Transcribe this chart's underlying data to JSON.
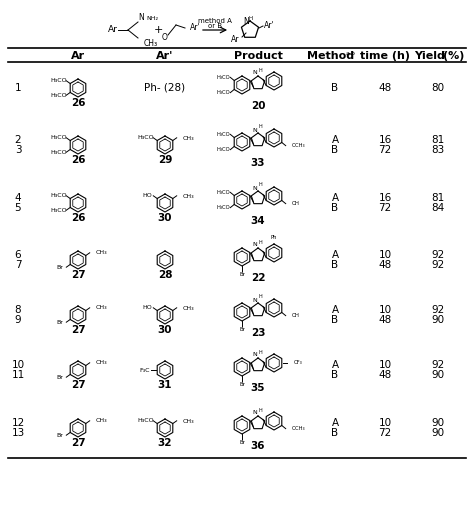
{
  "bg_color": "#ffffff",
  "text_color": "#000000",
  "rows": [
    {
      "entries": [
        "1"
      ],
      "ar": "26",
      "ar_prime": "Ph- (28)",
      "product": "20",
      "mtv": [
        [
          "B",
          "48",
          "80"
        ]
      ]
    },
    {
      "entries": [
        "2",
        "3"
      ],
      "ar": "26",
      "ar_prime": "29",
      "product": "33",
      "mtv": [
        [
          "A",
          "16",
          "81"
        ],
        [
          "B",
          "72",
          "83"
        ]
      ]
    },
    {
      "entries": [
        "4",
        "5"
      ],
      "ar": "26",
      "ar_prime": "30",
      "product": "34",
      "mtv": [
        [
          "A",
          "16",
          "81"
        ],
        [
          "B",
          "72",
          "84"
        ]
      ]
    },
    {
      "entries": [
        "6",
        "7"
      ],
      "ar": "27",
      "ar_prime": "28",
      "product": "22",
      "mtv": [
        [
          "A",
          "10",
          "92"
        ],
        [
          "B",
          "48",
          "92"
        ]
      ]
    },
    {
      "entries": [
        "8",
        "9"
      ],
      "ar": "27",
      "ar_prime": "30",
      "product": "23",
      "mtv": [
        [
          "A",
          "10",
          "92"
        ],
        [
          "B",
          "48",
          "90"
        ]
      ]
    },
    {
      "entries": [
        "10",
        "11"
      ],
      "ar": "27",
      "ar_prime": "31",
      "product": "35",
      "mtv": [
        [
          "A",
          "10",
          "92"
        ],
        [
          "B",
          "48",
          "90"
        ]
      ]
    },
    {
      "entries": [
        "12",
        "13"
      ],
      "ar": "27",
      "ar_prime": "32",
      "product": "36",
      "mtv": [
        [
          "A",
          "10",
          "90"
        ],
        [
          "B",
          "72",
          "90"
        ]
      ]
    }
  ]
}
